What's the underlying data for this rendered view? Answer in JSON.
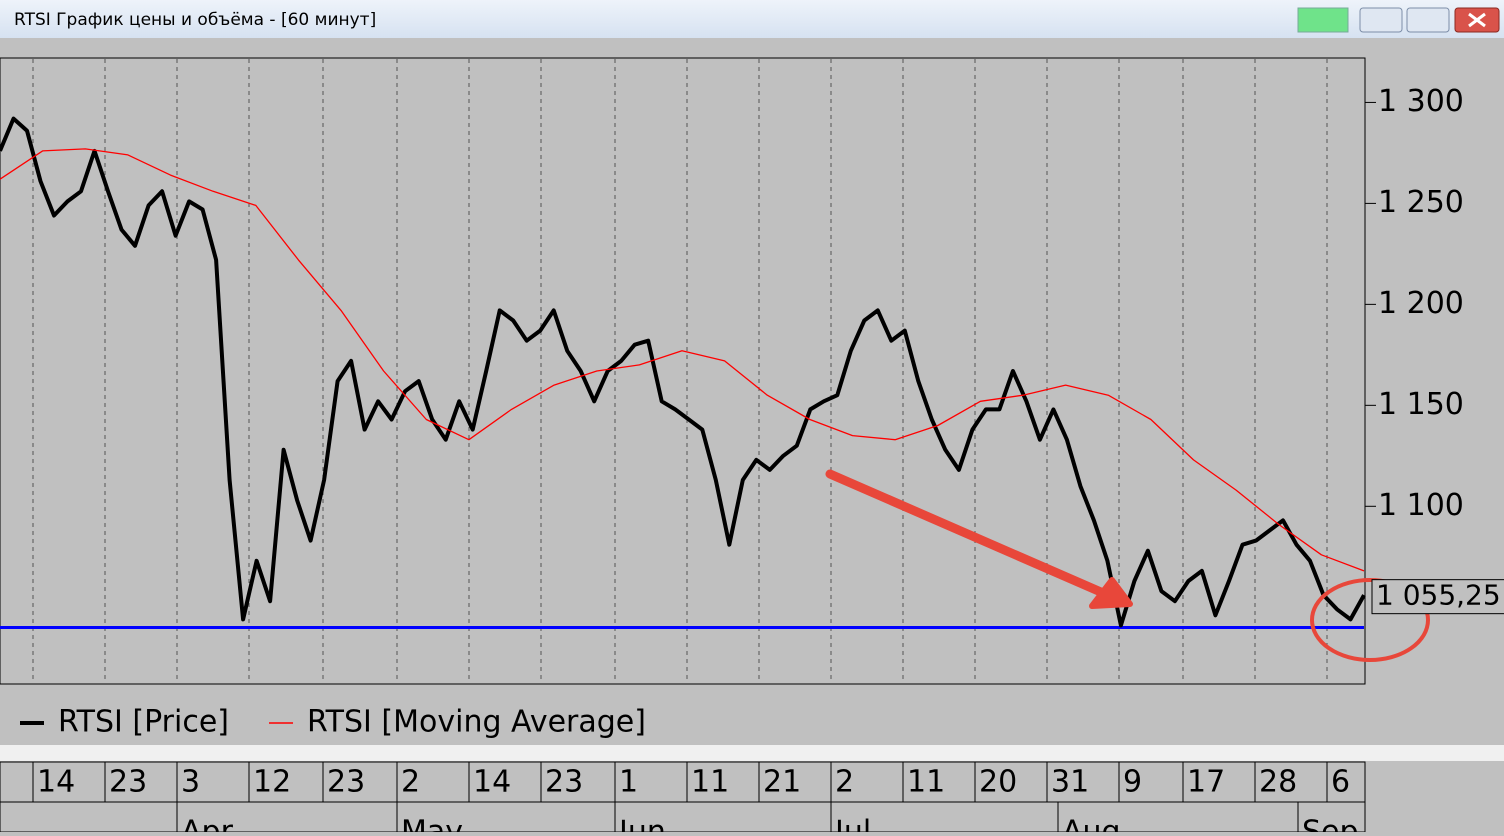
{
  "window": {
    "title": "RTSI График цены и объёма - [60 минут]"
  },
  "chart_data": {
    "type": "line",
    "series": [
      {
        "name": "RTSI [Price]",
        "color": "#000000",
        "values": [
          1276,
          1292,
          1286,
          1261,
          1244,
          1251,
          1256,
          1276,
          1256,
          1237,
          1229,
          1249,
          1256,
          1234,
          1251,
          1247,
          1222,
          1113,
          1044,
          1073,
          1053,
          1128,
          1103,
          1083,
          1113,
          1162,
          1172,
          1138,
          1152,
          1143,
          1157,
          1162,
          1143,
          1133,
          1152,
          1138,
          1167,
          1197,
          1192,
          1182,
          1187,
          1197,
          1177,
          1167,
          1152,
          1167,
          1172,
          1180,
          1182,
          1152,
          1148,
          1143,
          1138,
          1113,
          1081,
          1113,
          1123,
          1118,
          1125,
          1130,
          1148,
          1152,
          1155,
          1177,
          1192,
          1197,
          1182,
          1187,
          1162,
          1143,
          1128,
          1118,
          1138,
          1148,
          1148,
          1167,
          1152,
          1133,
          1148,
          1133,
          1110,
          1093,
          1073,
          1041,
          1063,
          1078,
          1058,
          1053,
          1063,
          1068,
          1046,
          1063,
          1081,
          1083,
          1088,
          1093,
          1081,
          1073,
          1056,
          1049,
          1044,
          1056
        ]
      },
      {
        "name": "RTSI [Moving Average]",
        "color": "#ff0000",
        "values": [
          1262,
          1276,
          1277,
          1274,
          1264,
          1256,
          1249,
          1222,
          1197,
          1167,
          1143,
          1133,
          1148,
          1160,
          1167,
          1170,
          1177,
          1172,
          1155,
          1143,
          1135,
          1133,
          1140,
          1152,
          1155,
          1160,
          1155,
          1143,
          1123,
          1108,
          1091,
          1076,
          1068
        ]
      }
    ],
    "x_tick_labels": [
      "14",
      "23",
      "3",
      "12",
      "23",
      "2",
      "14",
      "23",
      "1",
      "11",
      "21",
      "2",
      "11",
      "20",
      "31",
      "9",
      "17",
      "28",
      "6"
    ],
    "month_labels": [
      "Apr",
      "May",
      "Jun",
      "Jul",
      "Aug",
      "Sep"
    ],
    "ylim": [
      1012,
      1322
    ],
    "yticks": [
      {
        "value": 1100,
        "label": "1 100"
      },
      {
        "value": 1150,
        "label": "1 150"
      },
      {
        "value": 1200,
        "label": "1 200"
      },
      {
        "value": 1250,
        "label": "1 250"
      },
      {
        "value": 1300,
        "label": "1 300"
      }
    ],
    "support_level": 1040,
    "support_color": "#0000ff",
    "last_value": 1055.25,
    "last_value_label": "1 055,25",
    "grid": true
  }
}
